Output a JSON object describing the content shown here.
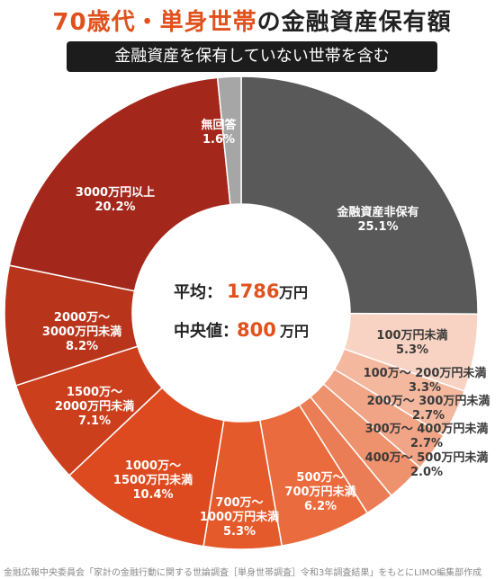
{
  "title": {
    "accent": "70歳代・単身世帯",
    "plain": "の金融資産保有額"
  },
  "subtitle": "金融資産を保有していない世帯を含む",
  "center": {
    "avg_label": "平均：",
    "avg_value": "1786",
    "avg_unit": "万円",
    "median_label": "中央値：",
    "median_value": "800",
    "median_unit": "万円"
  },
  "colors": {
    "accent": "#e0511d",
    "text_dark": "#222222"
  },
  "source": "金融広報中央委員会「家計の金融行動に関する世論調査［単身世帯調査］令和3年調査結果」をもとにLIMO編集部作成",
  "chart_data": {
    "type": "pie",
    "style": "donut",
    "title": "70歳代・単身世帯の金融資産保有額",
    "subtitle": "金融資産を保有していない世帯を含む",
    "slices": [
      {
        "label": "金融資産非保有",
        "value": 25.1,
        "percent_label": "25.1%",
        "color": "#595959"
      },
      {
        "label": "100万円未満",
        "value": 5.3,
        "percent_label": "5.3%",
        "color": "#f8d3c3"
      },
      {
        "label": "100万～ 200万円未満",
        "value": 3.3,
        "percent_label": "3.3%",
        "color": "#f4b89f"
      },
      {
        "label": "200万～ 300万円未満",
        "value": 2.7,
        "percent_label": "2.7%",
        "color": "#f1a486"
      },
      {
        "label": "300万～ 400万円未満",
        "value": 2.7,
        "percent_label": "2.7%",
        "color": "#ee916d"
      },
      {
        "label": "400万～ 500万円未満",
        "value": 2.0,
        "percent_label": "2.0%",
        "color": "#ea7d55"
      },
      {
        "label": "500万～ 700万円未満",
        "value": 6.2,
        "percent_label": "6.2%",
        "color": "#e96b3e"
      },
      {
        "label": "700万～ 1000万円未満",
        "value": 5.3,
        "percent_label": "5.3%",
        "color": "#e55a2a"
      },
      {
        "label": "1000万～ 1500万円未満",
        "value": 10.4,
        "percent_label": "10.4%",
        "color": "#dd4a1f"
      },
      {
        "label": "1500万～ 2000万円未満",
        "value": 7.1,
        "percent_label": "7.1%",
        "color": "#cc3f1d"
      },
      {
        "label": "2000万～ 3000万円未満",
        "value": 8.2,
        "percent_label": "8.2%",
        "color": "#b8351c"
      },
      {
        "label": "3000万円以上",
        "value": 20.2,
        "percent_label": "20.2%",
        "color": "#a3281b"
      },
      {
        "label": "無回答",
        "value": 1.6,
        "percent_label": "1.6%",
        "color": "#a6a6a6"
      }
    ]
  }
}
